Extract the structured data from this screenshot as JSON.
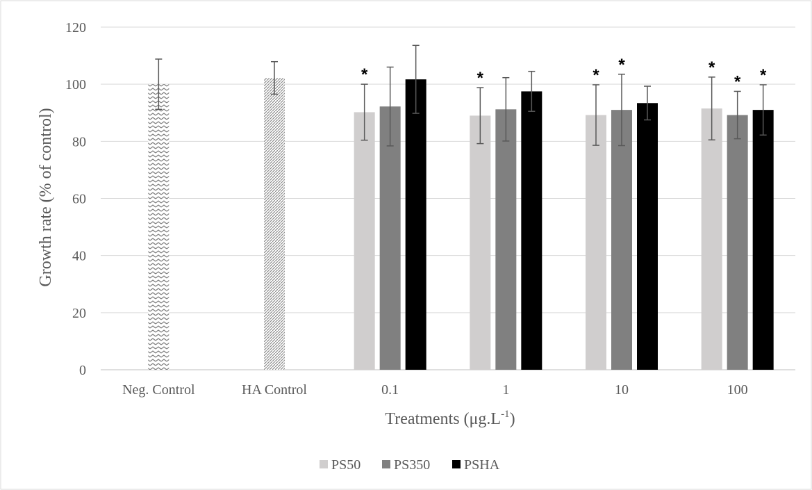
{
  "chart_data": {
    "type": "bar",
    "xlabel": "Treatments (μg.L",
    "xlabel_superscript": "-1",
    "xlabel_suffix": ")",
    "ylabel": "Growth rate  (% of control)",
    "ylim": [
      0,
      120
    ],
    "yticks": [
      0,
      20,
      40,
      60,
      80,
      100,
      120
    ],
    "grid": true,
    "legend_position": "bottom",
    "categories": [
      "Neg. Control",
      "HA Control",
      "0.1",
      "1",
      "10",
      "100"
    ],
    "controls": [
      {
        "category": "Neg. Control",
        "value": 100,
        "error": 8.8,
        "pattern": "zigzag"
      },
      {
        "category": "HA Control",
        "value": 102.2,
        "error": 5.7,
        "pattern": "diagonal"
      }
    ],
    "series": [
      {
        "name": "PS50",
        "color": "#d0cece",
        "values": [
          null,
          null,
          90.2,
          89.0,
          89.2,
          91.5
        ],
        "errors": [
          null,
          null,
          9.8,
          9.8,
          10.6,
          11.0
        ],
        "significant": [
          false,
          false,
          true,
          true,
          true,
          true
        ]
      },
      {
        "name": "PS350",
        "color": "#808080",
        "values": [
          null,
          null,
          92.2,
          91.2,
          91.0,
          89.2
        ],
        "errors": [
          null,
          null,
          13.8,
          11.1,
          12.5,
          8.3
        ],
        "significant": [
          false,
          false,
          false,
          false,
          true,
          true
        ]
      },
      {
        "name": "PSHA",
        "color": "#000000",
        "values": [
          null,
          null,
          101.7,
          97.5,
          93.4,
          91.0
        ],
        "errors": [
          null,
          null,
          11.9,
          7.0,
          5.9,
          8.8
        ],
        "significant": [
          false,
          false,
          false,
          false,
          false,
          true
        ]
      }
    ],
    "significance_marker": "*"
  }
}
